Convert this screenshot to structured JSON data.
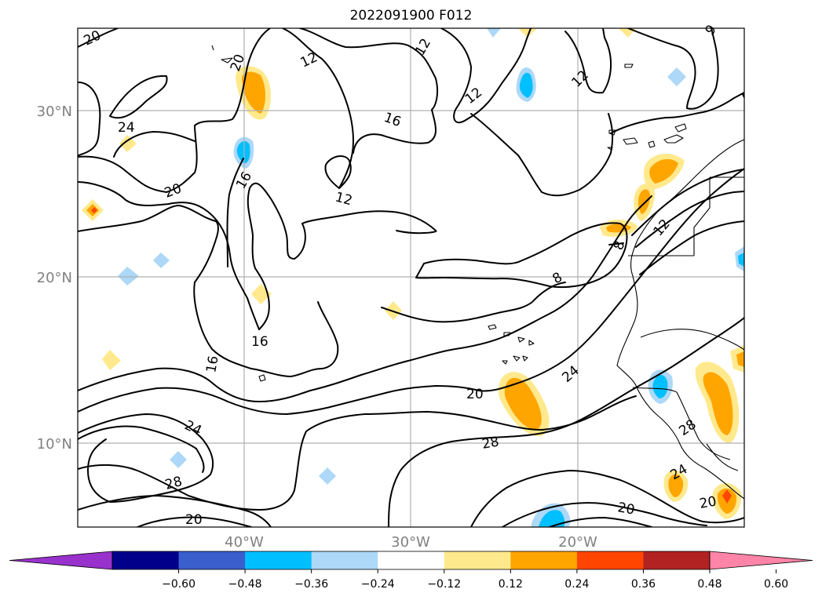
{
  "title": "2022091900 F012",
  "map": {
    "lat_labels": [
      "30°N",
      "20°N",
      "10°N"
    ],
    "lon_labels": [
      "40°W",
      "30°W",
      "20°W"
    ],
    "contour_labels": [
      {
        "text": "20"
      },
      {
        "text": "20"
      },
      {
        "text": "12"
      },
      {
        "text": "12"
      },
      {
        "text": "12"
      },
      {
        "text": "12"
      },
      {
        "text": "9"
      },
      {
        "text": "24"
      },
      {
        "text": "16"
      },
      {
        "text": "20"
      },
      {
        "text": "16"
      },
      {
        "text": "12"
      },
      {
        "text": "12"
      },
      {
        "text": "8"
      },
      {
        "text": "8"
      },
      {
        "text": "16"
      },
      {
        "text": "16"
      },
      {
        "text": "20"
      },
      {
        "text": "24"
      },
      {
        "text": "24"
      },
      {
        "text": "28"
      },
      {
        "text": "28"
      },
      {
        "text": "28"
      },
      {
        "text": "24"
      },
      {
        "text": "20"
      },
      {
        "text": "20"
      },
      {
        "text": "20"
      }
    ]
  },
  "colorbar": {
    "colors": [
      "#9932cc",
      "#00008b",
      "#3a5fcd",
      "#00bfff",
      "#add8f7",
      "#ffffff",
      "#ffe98c",
      "#ffa500",
      "#ff4500",
      "#b22222",
      "#ff85a8"
    ],
    "ticks": [
      "−0.60",
      "−0.48",
      "−0.36",
      "−0.24",
      "−0.12",
      "0.12",
      "0.24",
      "0.36",
      "0.48",
      "0.60"
    ]
  }
}
